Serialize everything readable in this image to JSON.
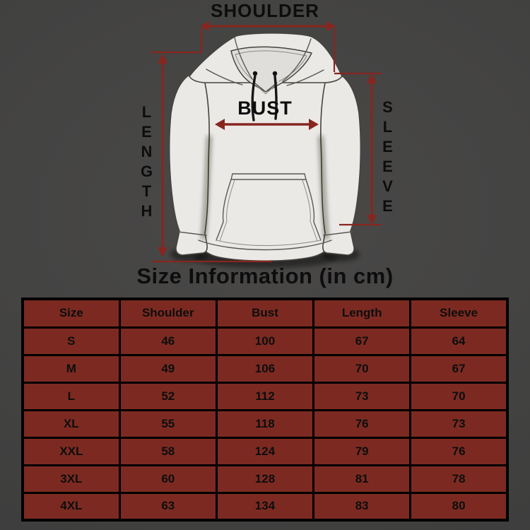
{
  "colors": {
    "background": "#424242",
    "annotation_red": "#87261f",
    "table_cell": "#7c2a21",
    "table_border": "#000000",
    "garment_fill": "#eae9e6",
    "text": "#0d0d0d"
  },
  "diagram": {
    "garment": "hoodie",
    "shoulder_label": "SHOULDER",
    "bust_label": "BUST",
    "length_label": "LENGTH",
    "sleeve_label": "SLEEVE"
  },
  "title": "Size Information (in cm)",
  "size_table": {
    "columns": [
      "Size",
      "Shoulder",
      "Bust",
      "Length",
      "Sleeve"
    ],
    "rows": [
      [
        "S",
        "46",
        "100",
        "67",
        "64"
      ],
      [
        "M",
        "49",
        "106",
        "70",
        "67"
      ],
      [
        "L",
        "52",
        "112",
        "73",
        "70"
      ],
      [
        "XL",
        "55",
        "118",
        "76",
        "73"
      ],
      [
        "XXL",
        "58",
        "124",
        "79",
        "76"
      ],
      [
        "3XL",
        "60",
        "128",
        "81",
        "78"
      ],
      [
        "4XL",
        "63",
        "134",
        "83",
        "80"
      ]
    ]
  }
}
